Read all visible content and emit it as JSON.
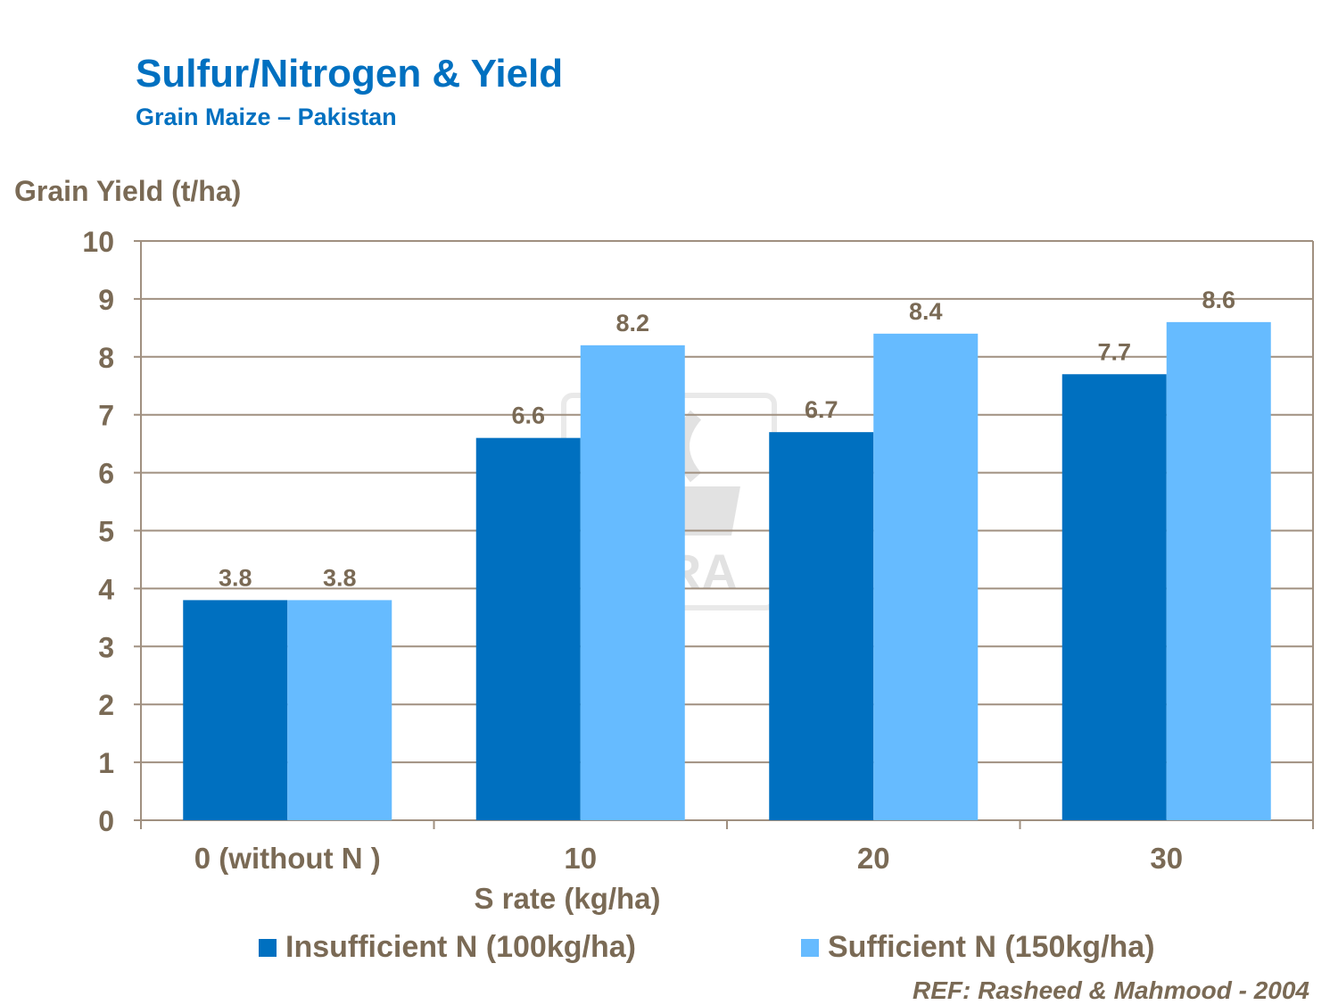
{
  "chart_data": {
    "type": "bar",
    "title": "Sulfur/Nitrogen & Yield",
    "subtitle": "Grain Maize – Pakistan",
    "ylabel": "Grain Yield (t/ha)",
    "xlabel": "S rate (kg/ha)",
    "categories": [
      "0 (without N )",
      "10",
      "20",
      "30"
    ],
    "series": [
      {
        "name": "Insufficient N (100kg/ha)",
        "color": "#0070c0",
        "values": [
          3.8,
          6.6,
          6.7,
          7.7
        ],
        "labels": [
          "3.8",
          "6.6",
          "6.7",
          "7.7"
        ]
      },
      {
        "name": "Sufficient N (150kg/ha)",
        "color": "#66bbff",
        "values": [
          3.8,
          8.2,
          8.4,
          8.6
        ],
        "labels": [
          "3.8",
          "8.2",
          "8.4",
          "8.6"
        ]
      }
    ],
    "ylim": [
      0,
      10
    ],
    "yticks": [
      "0",
      "1",
      "2",
      "3",
      "4",
      "5",
      "6",
      "7",
      "8",
      "9",
      "10"
    ],
    "grid": true,
    "legend": "bottom"
  },
  "reference": "REF: Rasheed & Mahmood - 2004",
  "watermark": {
    "text": "YARA"
  },
  "colors": {
    "axis": "#a09080",
    "grid": "#a09080",
    "text": "#7a6a55",
    "title": "#0070c0"
  }
}
